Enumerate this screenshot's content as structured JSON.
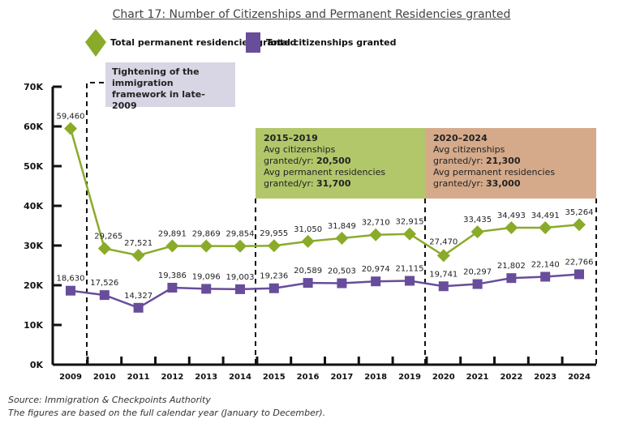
{
  "chart_data": {
    "type": "line",
    "title": "Chart 17: Number of Citizenships and Permanent Residencies granted",
    "categories": [
      "2009",
      "2010",
      "2011",
      "2012",
      "2013",
      "2014",
      "2015",
      "2016",
      "2017",
      "2018",
      "2019",
      "2020",
      "2021",
      "2022",
      "2023",
      "2024"
    ],
    "series": [
      {
        "name": "Total permanent residencies granted",
        "color": "#8aab2a",
        "marker": "diamond",
        "values": [
          59460,
          29265,
          27521,
          29891,
          29869,
          29854,
          29955,
          31050,
          31849,
          32710,
          32915,
          27470,
          33435,
          34493,
          34491,
          35264
        ],
        "labels": [
          "59,460",
          "29,265",
          "27,521",
          "29,891",
          "29,869",
          "29,854",
          "29,955",
          "31,050",
          "31,849",
          "32,710",
          "32,915",
          "27,470",
          "33,435",
          "34,493",
          "34,491",
          "35,264"
        ]
      },
      {
        "name": "Total citizenships granted",
        "color": "#674d9a",
        "marker": "square",
        "values": [
          18630,
          17526,
          14327,
          19386,
          19096,
          19003,
          19236,
          20589,
          20503,
          20974,
          21115,
          19741,
          20297,
          21802,
          22140,
          22766
        ],
        "labels": [
          "18,630",
          "17,526",
          "14,327",
          "19,386",
          "19,096",
          "19,003",
          "19,236",
          "20,589",
          "20,503",
          "20,974",
          "21,115",
          "19,741",
          "20,297",
          "21,802",
          "22,140",
          "22,766"
        ]
      }
    ],
    "ylim": [
      0,
      70000
    ],
    "yticks": [
      "0K",
      "10K",
      "20K",
      "30K",
      "40K",
      "50K",
      "60K",
      "70K"
    ],
    "grid": false,
    "legend": "top",
    "annotations": [
      {
        "text": "Tightening of the immigration framework in late-2009",
        "color": "#d8d6e4"
      },
      {
        "heading": "2015–2019",
        "line1": "Avg citizenships",
        "line2a": "granted/yr: ",
        "line2b": "20,500",
        "line3": "Avg permanent residencies",
        "line4a": "granted/yr: ",
        "line4b": "31,700",
        "color": "#b2c76a"
      },
      {
        "heading": "2020–2024",
        "line1": "Avg citizenships",
        "line2a": "granted/yr: ",
        "line2b": "21,300",
        "line3": "Avg permanent residencies",
        "line4a": "granted/yr: ",
        "line4b": "33,000",
        "color": "#d5aa8a"
      }
    ]
  },
  "source": "Source: Immigration & Checkpoints Authority",
  "note": "The figures are based on the full calendar year (January to December)."
}
